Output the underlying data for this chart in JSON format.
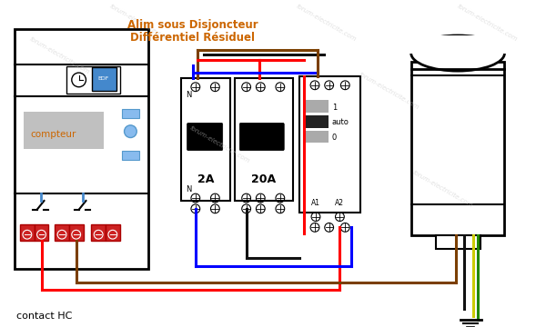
{
  "title_line1": "Alim sous Disjoncteur",
  "title_line2": "Différentiel Résiduel",
  "label_contact": "contact HC",
  "label_compteur": "compteur",
  "label_2A": "2A",
  "label_20A": "20A",
  "label_N": "N",
  "label_A1": "A1",
  "label_A2": "A2",
  "label_1": "1",
  "label_auto": "auto",
  "label_0": "0",
  "watermark": "forum-electricite.com",
  "bg_color": "#ffffff",
  "title_color": "#cc6600",
  "wire_red": "#ff0000",
  "wire_blue": "#0000ff",
  "wire_black": "#111111",
  "wire_brown": "#7B3F00",
  "wire_green": "#44aa00",
  "wire_yellow": "#cccc00"
}
